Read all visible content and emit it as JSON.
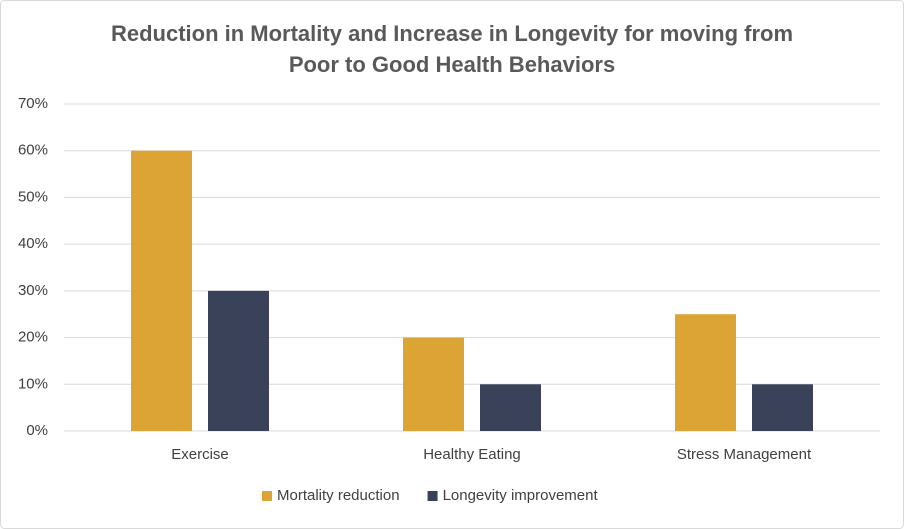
{
  "chart_data": {
    "type": "bar",
    "title": "Reduction in Mortality and Increase in Longevity for moving from Poor to Good Health Behaviors",
    "categories": [
      "Exercise",
      "Healthy Eating",
      "Stress Management"
    ],
    "series": [
      {
        "name": "Mortality reduction",
        "color": "#dba435",
        "values": [
          60,
          20,
          25
        ]
      },
      {
        "name": "Longevity improvement",
        "color": "#3a4259",
        "values": [
          30,
          10,
          10
        ]
      }
    ],
    "ylim": [
      0,
      70
    ],
    "yticks": [
      {
        "value": 0,
        "label": "0%"
      },
      {
        "value": 10,
        "label": "10%"
      },
      {
        "value": 20,
        "label": "20%"
      },
      {
        "value": 30,
        "label": "30%"
      },
      {
        "value": 40,
        "label": "40%"
      },
      {
        "value": 50,
        "label": "50%"
      },
      {
        "value": 60,
        "label": "60%"
      },
      {
        "value": 70,
        "label": "70%"
      }
    ],
    "grid": true,
    "legend": "bottom"
  }
}
